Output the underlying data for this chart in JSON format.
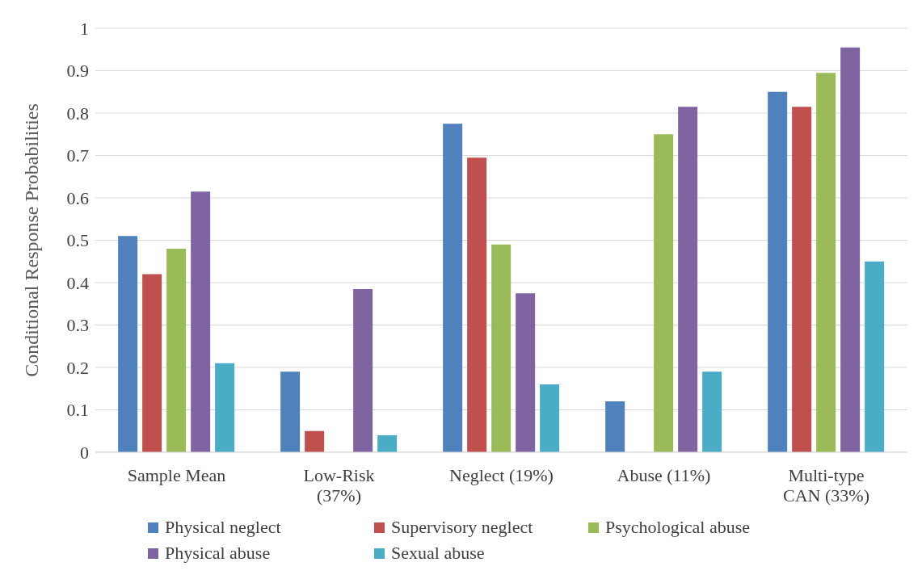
{
  "chart_data": {
    "type": "bar",
    "ylabel": "Conditional Response Probabilities",
    "categories": [
      "Sample Mean",
      "Low-Risk (37%)",
      "Neglect (19%)",
      "Abuse (11%)",
      "Multi-type CAN (33%)"
    ],
    "series": [
      {
        "name": "Physical neglect",
        "color": "#4f81bd",
        "values": [
          0.51,
          0.19,
          0.775,
          0.12,
          0.85
        ]
      },
      {
        "name": "Supervisory neglect",
        "color": "#c0504d",
        "values": [
          0.42,
          0.05,
          0.695,
          0,
          0.815
        ]
      },
      {
        "name": "Psychological abuse",
        "color": "#9bbb59",
        "values": [
          0.48,
          0,
          0.49,
          0.75,
          0.895
        ]
      },
      {
        "name": "Physical abuse",
        "color": "#8064a2",
        "values": [
          0.615,
          0.385,
          0.375,
          0.815,
          0.955
        ]
      },
      {
        "name": "Sexual abuse",
        "color": "#4bacc6",
        "values": [
          0.21,
          0.04,
          0.16,
          0.19,
          0.45
        ]
      }
    ],
    "ylim": [
      0,
      1
    ],
    "yticks": [
      0,
      0.1,
      0.2,
      0.3,
      0.4,
      0.5,
      0.6,
      0.7,
      0.8,
      0.9,
      1
    ],
    "grid": "y",
    "legend": "bottom"
  }
}
